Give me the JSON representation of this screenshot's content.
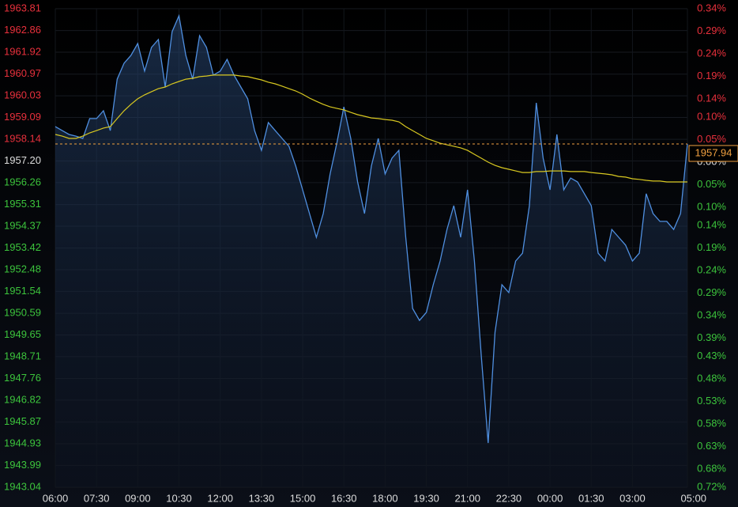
{
  "chart_data": {
    "type": "line",
    "categories": [
      "06:00",
      "06:15",
      "06:30",
      "06:45",
      "07:00",
      "07:15",
      "07:30",
      "07:45",
      "08:00",
      "08:15",
      "08:30",
      "08:45",
      "09:00",
      "09:15",
      "09:30",
      "09:45",
      "10:00",
      "10:15",
      "10:30",
      "10:45",
      "11:00",
      "11:15",
      "11:30",
      "11:45",
      "12:00",
      "12:15",
      "12:30",
      "12:45",
      "13:00",
      "13:15",
      "13:30",
      "13:45",
      "14:00",
      "14:15",
      "14:30",
      "14:45",
      "15:00",
      "15:15",
      "15:30",
      "15:45",
      "16:00",
      "16:15",
      "16:30",
      "16:45",
      "17:00",
      "17:15",
      "17:30",
      "17:45",
      "18:00",
      "18:15",
      "18:30",
      "18:45",
      "19:00",
      "19:15",
      "19:30",
      "19:45",
      "20:00",
      "20:15",
      "20:30",
      "20:45",
      "21:00",
      "21:15",
      "21:30",
      "21:45",
      "22:00",
      "22:15",
      "22:30",
      "22:45",
      "23:00",
      "23:15",
      "23:30",
      "23:45",
      "00:00",
      "00:15",
      "00:30",
      "00:45",
      "01:00",
      "01:15",
      "01:30",
      "01:45",
      "02:00",
      "02:15",
      "02:30",
      "02:45",
      "03:00",
      "03:15",
      "03:30",
      "03:45",
      "04:00",
      "04:15",
      "04:30",
      "04:45",
      "05:00"
    ],
    "series": [
      {
        "color": "#4f8fe0",
        "values": [
          1958.69,
          1958.52,
          1958.35,
          1958.28,
          1958.18,
          1959.04,
          1959.04,
          1959.38,
          1958.52,
          1960.75,
          1961.44,
          1961.78,
          1962.3,
          1961.1,
          1962.13,
          1962.47,
          1960.41,
          1962.81,
          1963.5,
          1961.78,
          1960.75,
          1962.64,
          1962.13,
          1960.93,
          1961.1,
          1961.61,
          1960.93,
          1960.41,
          1959.9,
          1958.52,
          1957.66,
          1958.87,
          1958.52,
          1958.18,
          1957.84,
          1956.98,
          1955.95,
          1954.92,
          1953.89,
          1954.92,
          1956.64,
          1958.01,
          1959.55,
          1958.18,
          1956.29,
          1954.92,
          1956.98,
          1958.18,
          1956.64,
          1957.32,
          1957.66,
          1953.89,
          1950.8,
          1950.28,
          1950.63,
          1951.83,
          1952.86,
          1954.23,
          1955.26,
          1953.89,
          1955.95,
          1952.86,
          1948.74,
          1944.96,
          1949.77,
          1951.83,
          1951.49,
          1952.86,
          1953.2,
          1955.26,
          1959.72,
          1957.32,
          1955.95,
          1958.35,
          1955.95,
          1956.46,
          1956.29,
          1955.78,
          1955.26,
          1953.2,
          1952.86,
          1954.23,
          1953.89,
          1953.55,
          1952.86,
          1953.2,
          1955.78,
          1954.92,
          1954.58,
          1954.58,
          1954.23,
          1954.92,
          1957.94
        ]
      },
      {
        "color": "#d8c820",
        "values": [
          1958.35,
          1958.28,
          1958.18,
          1958.18,
          1958.28,
          1958.42,
          1958.52,
          1958.63,
          1958.69,
          1959.04,
          1959.38,
          1959.66,
          1959.9,
          1960.07,
          1960.21,
          1960.34,
          1960.41,
          1960.55,
          1960.65,
          1960.75,
          1960.79,
          1960.86,
          1960.89,
          1960.93,
          1960.93,
          1960.93,
          1960.93,
          1960.89,
          1960.86,
          1960.79,
          1960.72,
          1960.62,
          1960.55,
          1960.45,
          1960.34,
          1960.24,
          1960.1,
          1959.93,
          1959.79,
          1959.66,
          1959.55,
          1959.48,
          1959.42,
          1959.31,
          1959.21,
          1959.14,
          1959.07,
          1959.04,
          1959.0,
          1958.97,
          1958.9,
          1958.69,
          1958.52,
          1958.35,
          1958.18,
          1958.08,
          1957.97,
          1957.9,
          1957.84,
          1957.77,
          1957.66,
          1957.49,
          1957.32,
          1957.15,
          1957.01,
          1956.91,
          1956.84,
          1956.77,
          1956.7,
          1956.7,
          1956.74,
          1956.74,
          1956.77,
          1956.77,
          1956.77,
          1956.74,
          1956.74,
          1956.74,
          1956.7,
          1956.67,
          1956.64,
          1956.6,
          1956.53,
          1956.5,
          1956.43,
          1956.4,
          1956.36,
          1956.33,
          1956.33,
          1956.29,
          1956.29,
          1956.29,
          1956.29
        ]
      }
    ],
    "current_price": 1957.94,
    "current_color": "#f0a040",
    "up_color": "#e8303c",
    "down_color": "#3cc43c",
    "xticks": [
      "06:00",
      "07:30",
      "09:00",
      "10:30",
      "12:00",
      "13:30",
      "15:00",
      "16:30",
      "18:00",
      "19:30",
      "21:00",
      "22:30",
      "00:00",
      "01:30",
      "03:00",
      "05:00"
    ],
    "ylim": [
      1943.04,
      1963.81
    ],
    "yticks": [
      {
        "value": 1963.81,
        "label": "1963.81"
      },
      {
        "value": 1962.86,
        "label": "1962.86"
      },
      {
        "value": 1961.92,
        "label": "1961.92"
      },
      {
        "value": 1960.97,
        "label": "1960.97"
      },
      {
        "value": 1960.03,
        "label": "1960.03"
      },
      {
        "value": 1959.09,
        "label": "1959.09"
      },
      {
        "value": 1958.14,
        "label": "1958.14"
      },
      {
        "value": 1957.2,
        "label": "1957.20"
      },
      {
        "value": 1956.26,
        "label": "1956.26"
      },
      {
        "value": 1955.31,
        "label": "1955.31"
      },
      {
        "value": 1954.37,
        "label": "1954.37"
      },
      {
        "value": 1953.42,
        "label": "1953.42"
      },
      {
        "value": 1952.48,
        "label": "1952.48"
      },
      {
        "value": 1951.54,
        "label": "1951.54"
      },
      {
        "value": 1950.59,
        "label": "1950.59"
      },
      {
        "value": 1949.65,
        "label": "1949.65"
      },
      {
        "value": 1948.71,
        "label": "1948.71"
      },
      {
        "value": 1947.76,
        "label": "1947.76"
      },
      {
        "value": 1946.82,
        "label": "1946.82"
      },
      {
        "value": 1945.87,
        "label": "1945.87"
      },
      {
        "value": 1944.93,
        "label": "1944.93"
      },
      {
        "value": 1943.99,
        "label": "1943.99"
      },
      {
        "value": 1943.04,
        "label": "1943.04"
      }
    ],
    "y2lim": [
      -0.72,
      0.34
    ],
    "y2ticks": [
      {
        "value": 0.34,
        "label": "0.34%"
      },
      {
        "value": 0.29,
        "label": "0.29%"
      },
      {
        "value": 0.24,
        "label": "0.24%"
      },
      {
        "value": 0.19,
        "label": "0.19%"
      },
      {
        "value": 0.14,
        "label": "0.14%"
      },
      {
        "value": 0.1,
        "label": "0.10%"
      },
      {
        "value": 0.05,
        "label": "0.05%"
      },
      {
        "value": 0,
        "label": "0.00%"
      },
      {
        "value": -0.05,
        "label": "0.05%"
      },
      {
        "value": -0.1,
        "label": "0.10%"
      },
      {
        "value": -0.14,
        "label": "0.14%"
      },
      {
        "value": -0.19,
        "label": "0.19%"
      },
      {
        "value": -0.24,
        "label": "0.24%"
      },
      {
        "value": -0.29,
        "label": "0.29%"
      },
      {
        "value": -0.34,
        "label": "0.34%"
      },
      {
        "value": -0.39,
        "label": "0.39%"
      },
      {
        "value": -0.43,
        "label": "0.43%"
      },
      {
        "value": -0.48,
        "label": "0.48%"
      },
      {
        "value": -0.53,
        "label": "0.53%"
      },
      {
        "value": -0.58,
        "label": "0.58%"
      },
      {
        "value": -0.63,
        "label": "0.63%"
      },
      {
        "value": -0.68,
        "label": "0.68%"
      },
      {
        "value": -0.72,
        "label": "0.72%"
      }
    ],
    "grid": true
  }
}
